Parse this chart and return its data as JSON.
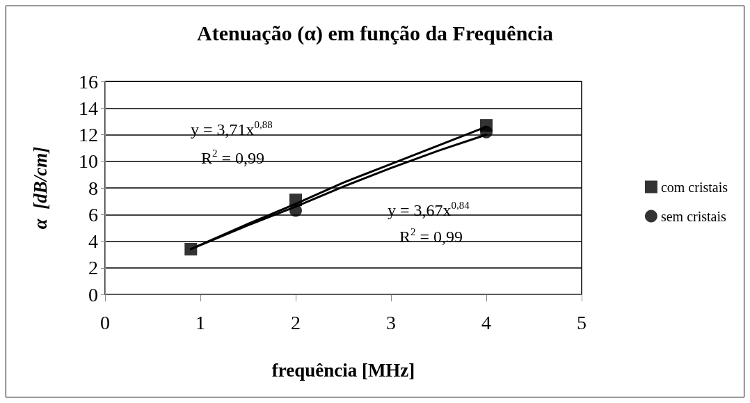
{
  "chart_data": {
    "type": "scatter",
    "title": "Atenuação (α) em função da Frequência",
    "xlabel": "frequência [MHz]",
    "ylabel": "α  [dB/cm]",
    "series": [
      {
        "name": "com cristais",
        "color": "#000000",
        "marker": "square",
        "x": [
          0.9,
          2,
          4
        ],
        "values": [
          3.4,
          7.1,
          12.7
        ]
      },
      {
        "name": "sem cristais",
        "color": "#000000",
        "marker": "circle",
        "x": [
          2,
          4
        ],
        "values": [
          6.3,
          12.2
        ]
      },
      {
        "type": "line",
        "color": "#000000",
        "marker": "none",
        "line_style": "solid",
        "x": [
          0.9,
          1.5,
          2,
          2.5,
          3,
          3.5,
          4
        ],
        "values": [
          3.4,
          5.3,
          6.8,
          8.4,
          9.8,
          11.2,
          12.6
        ]
      },
      {
        "type": "line",
        "color": "#000000",
        "marker": "none",
        "line_style": "solid",
        "x": [
          0.9,
          1.5,
          2,
          2.5,
          3,
          3.5,
          4
        ],
        "values": [
          3.4,
          5.2,
          6.6,
          8.1,
          9.5,
          10.8,
          12.0
        ]
      }
    ],
    "xlim": [
      0,
      5
    ],
    "xticks": [
      0,
      1,
      2,
      3,
      4,
      5
    ],
    "ylim": [
      0,
      16
    ],
    "yticks": [
      0,
      2,
      4,
      6,
      8,
      10,
      12,
      14,
      16
    ],
    "grid": "y",
    "legend": "right",
    "annotations": [
      "y = 3,71x$^{0,88}$",
      "R$^{2}$ = 0,99",
      "y = 3,67x$^{0,84}$",
      "R$^{2}$ = 0,99"
    ]
  }
}
